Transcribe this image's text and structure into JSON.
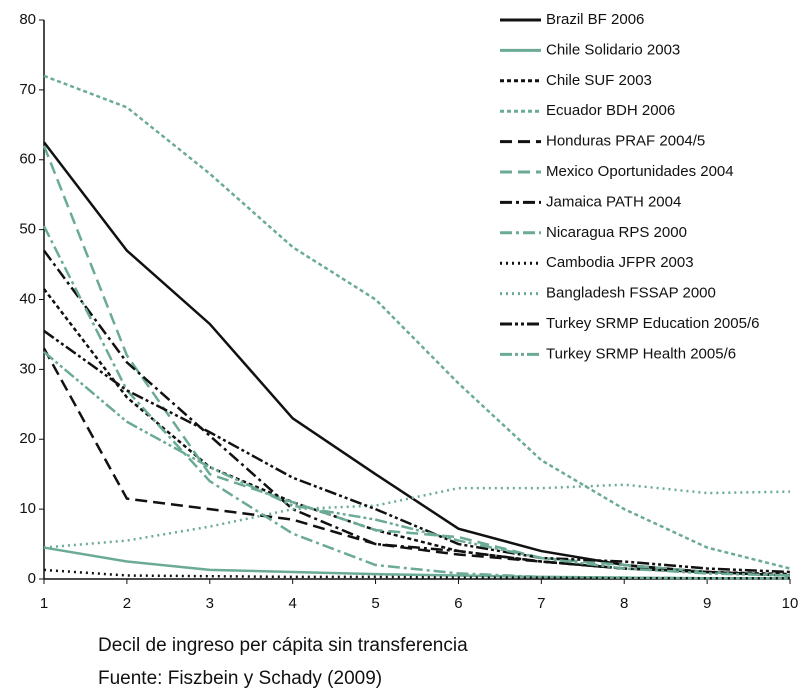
{
  "chart_data": {
    "type": "line",
    "x_label": "Decil de ingreso per cápita sin transferencia",
    "source": "Fuente: Fiszbein y Schady (2009)",
    "x": [
      1,
      2,
      3,
      4,
      5,
      6,
      7,
      8,
      9,
      10
    ],
    "xlim": [
      1,
      10
    ],
    "xticks": [
      1,
      2,
      3,
      4,
      5,
      6,
      7,
      8,
      9,
      10
    ],
    "ylim": [
      0,
      80
    ],
    "yticks": [
      0,
      10,
      20,
      30,
      40,
      50,
      60,
      70,
      80
    ],
    "legend": "upper right",
    "series": [
      {
        "name": "Brazil BF 2006",
        "color": "#111111",
        "style": "solid",
        "values": [
          62.5,
          47,
          36.5,
          23,
          15,
          7.2,
          4,
          2,
          1,
          0.5
        ]
      },
      {
        "name": "Chile Solidario 2003",
        "color": "#6aaa96",
        "style": "solid",
        "values": [
          4.5,
          2.5,
          1.3,
          1,
          0.7,
          0.5,
          0.3,
          0.2,
          0.1,
          0.1
        ]
      },
      {
        "name": "Chile SUF 2003",
        "color": "#111111",
        "style": "shortdash",
        "values": [
          41.5,
          26,
          16,
          11,
          7,
          4,
          2.5,
          1.5,
          1,
          0.7
        ]
      },
      {
        "name": "Ecuador BDH 2006",
        "color": "#6aaa96",
        "style": "shortdash",
        "values": [
          72,
          67.5,
          58,
          47.5,
          40,
          28,
          17,
          10,
          4.5,
          1.5
        ]
      },
      {
        "name": "Honduras PRAF 2004/5",
        "color": "#111111",
        "style": "longdash",
        "values": [
          33,
          11.5,
          10,
          8.5,
          5,
          3.5,
          2.5,
          1.5,
          1,
          0.5
        ]
      },
      {
        "name": "Mexico Oportunidades 2004",
        "color": "#6aaa96",
        "style": "longdash",
        "values": [
          62,
          32,
          15,
          11,
          7,
          6,
          3,
          2,
          1,
          0.5
        ]
      },
      {
        "name": "Jamaica PATH 2004",
        "color": "#111111",
        "style": "dashdot",
        "values": [
          47,
          31,
          20.5,
          10,
          5,
          4,
          2.5,
          1.5,
          1,
          0.5
        ]
      },
      {
        "name": "Nicaragua RPS 2000",
        "color": "#6aaa96",
        "style": "dashdot",
        "values": [
          50.5,
          27,
          14,
          6.5,
          2,
          0.8,
          0.3,
          0.2,
          0.1,
          0.1
        ]
      },
      {
        "name": "Cambodia JFPR 2003",
        "color": "#111111",
        "style": "dotted",
        "values": [
          1.3,
          0.5,
          0.4,
          0.3,
          0.3,
          0.2,
          0.2,
          0.1,
          0.1,
          0.1
        ]
      },
      {
        "name": "Bangladesh FSSAP 2000",
        "color": "#6aaa96",
        "style": "dotted",
        "values": [
          4.5,
          5.5,
          7.5,
          10,
          10.5,
          13,
          13,
          13.5,
          12.3,
          12.5
        ]
      },
      {
        "name": "Turkey SRMP Education 2005/6",
        "color": "#111111",
        "style": "dashdotdot",
        "values": [
          35.5,
          27,
          21,
          14.5,
          10,
          5,
          3,
          2.5,
          1.5,
          1
        ]
      },
      {
        "name": "Turkey SRMP Health 2005/6",
        "color": "#6aaa96",
        "style": "dashdotdot",
        "values": [
          32.5,
          22.5,
          16,
          10.5,
          8.5,
          5.5,
          3,
          1.5,
          0.8,
          0.5
        ]
      }
    ]
  }
}
